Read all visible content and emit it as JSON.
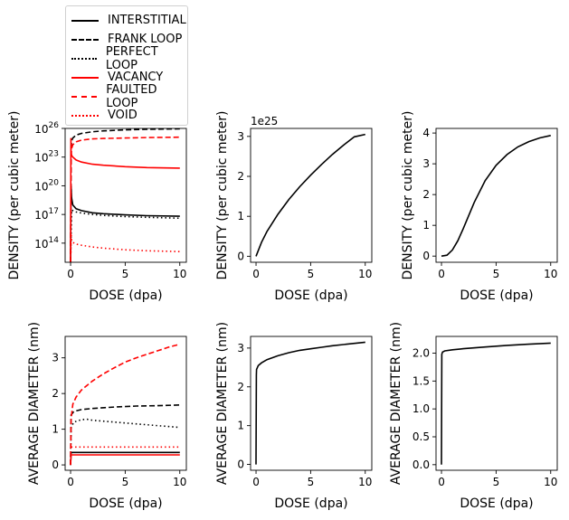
{
  "legend": [
    {
      "label": "INTERSTITIAL",
      "color": "#000000",
      "dash": "solid"
    },
    {
      "label": "FRANK LOOP",
      "color": "#000000",
      "dash": "dashed"
    },
    {
      "label": "PERFECT LOOP",
      "color": "#000000",
      "dash": "dotted"
    },
    {
      "label": "VACANCY",
      "color": "#ff0000",
      "dash": "solid"
    },
    {
      "label": "FAULTED LOOP",
      "color": "#ff0000",
      "dash": "dashed"
    },
    {
      "label": "VOID",
      "color": "#ff0000",
      "dash": "dotted"
    }
  ],
  "chart_data": [
    {
      "type": "line",
      "yscale": "log",
      "xlabel": "DOSE (dpa)",
      "ylabel": "DENSITY (per cubic meter)",
      "xlim": [
        -0.5,
        10.6
      ],
      "ylim": [
        1000000000000.0,
        1e+26
      ],
      "xticks": [
        0,
        5,
        10
      ],
      "yticks": [
        100000000000000.0,
        1e+17,
        1e+20,
        1e+23,
        1e+26
      ],
      "ytick_labels": [
        [
          "10",
          "14"
        ],
        [
          "10",
          "17"
        ],
        [
          "10",
          "20"
        ],
        [
          "10",
          "23"
        ],
        [
          "10",
          "26"
        ]
      ],
      "series": [
        {
          "name": "INTERSTITIAL",
          "color": "#000000",
          "dash": "solid",
          "x": [
            0,
            0.05,
            0.1,
            0.2,
            0.5,
            1,
            2,
            3,
            5,
            7,
            10
          ],
          "y": [
            1000000000000.0,
            1e+20,
            5e+18,
            1e+18,
            4e+17,
            2.5e+17,
            1.5e+17,
            1.2e+17,
            9e+16,
            7.5e+16,
            6.5e+16
          ]
        },
        {
          "name": "FRANK LOOP",
          "color": "#000000",
          "dash": "dashed",
          "x": [
            0,
            0.05,
            0.1,
            0.2,
            0.5,
            1,
            2,
            3,
            5,
            7,
            10
          ],
          "y": [
            1000000000000.0,
            1e+24,
            5e+24,
            1e+25,
            2e+25,
            3e+25,
            4.5e+25,
            5.5e+25,
            7e+25,
            8e+25,
            9e+25
          ]
        },
        {
          "name": "PERFECT LOOP",
          "color": "#000000",
          "dash": "dotted",
          "x": [
            0,
            0.1,
            0.2,
            0.5,
            1,
            2,
            3,
            5,
            7,
            10
          ],
          "y": [
            1000000000000.0,
            3e+17,
            2.5e+17,
            1.8e+17,
            1.4e+17,
            1e+17,
            8e+16,
            6e+16,
            5e+16,
            4e+16
          ]
        },
        {
          "name": "VACANCY",
          "color": "#ff0000",
          "dash": "solid",
          "x": [
            0,
            0.03,
            0.05,
            0.1,
            0.2,
            0.5,
            1,
            2,
            3,
            5,
            7,
            10
          ],
          "y": [
            1000000000000.0,
            1e+25,
            3e+23,
            1.5e+23,
            1e+23,
            5e+22,
            3e+22,
            1.8e+22,
            1.4e+22,
            1e+22,
            8e+21,
            7e+21
          ]
        },
        {
          "name": "FAULTED LOOP",
          "color": "#ff0000",
          "dash": "dashed",
          "x": [
            0,
            0.05,
            0.1,
            0.2,
            0.5,
            1,
            2,
            3,
            5,
            7,
            10
          ],
          "y": [
            1000000000000.0,
            1e+23,
            8e+23,
            2e+24,
            4e+24,
            6e+24,
            8e+24,
            9e+24,
            1e+25,
            1.1e+25,
            1.2e+25
          ]
        },
        {
          "name": "VOID",
          "color": "#ff0000",
          "dash": "dotted",
          "x": [
            0.03,
            0.05,
            0.1,
            0.2,
            0.5,
            1,
            2,
            3,
            5,
            7,
            10
          ],
          "y": [
            10000000000000.0,
            1000000000000000.0,
            200000000000000.0,
            120000000000000.0,
            80000000000000.0,
            60000000000000.0,
            40000000000000.0,
            30000000000000.0,
            20000000000000.0,
            16000000000000.0,
            13000000000000.0
          ]
        }
      ]
    },
    {
      "type": "line",
      "xlabel": "DOSE (dpa)",
      "ylabel": "DENSITY (per cubic meter)",
      "offset_text": "1e25",
      "xlim": [
        -0.5,
        10.6
      ],
      "ylim": [
        -0.15,
        3.2
      ],
      "xticks": [
        0,
        5,
        10
      ],
      "yticks": [
        0,
        1,
        2,
        3
      ],
      "series": [
        {
          "color": "#000000",
          "dash": "solid",
          "x": [
            0,
            0.5,
            1,
            2,
            3,
            4,
            5,
            6,
            7,
            8,
            9,
            10
          ],
          "y": [
            0,
            0.35,
            0.62,
            1.05,
            1.42,
            1.74,
            2.03,
            2.3,
            2.55,
            2.78,
            2.99,
            3.05
          ]
        }
      ]
    },
    {
      "type": "line",
      "xlabel": "DOSE (dpa)",
      "ylabel": "DENSITY (per cubic meter)",
      "xlim": [
        -0.5,
        10.6
      ],
      "ylim": [
        -0.2,
        4.15
      ],
      "xticks": [
        0,
        5,
        10
      ],
      "yticks": [
        0,
        1,
        2,
        3,
        4
      ],
      "series": [
        {
          "color": "#000000",
          "dash": "solid",
          "x": [
            0,
            0.5,
            1,
            1.5,
            2,
            3,
            4,
            5,
            6,
            7,
            8,
            9,
            10
          ],
          "y": [
            0,
            0.03,
            0.2,
            0.5,
            0.9,
            1.75,
            2.45,
            2.95,
            3.3,
            3.55,
            3.72,
            3.84,
            3.92
          ]
        }
      ]
    },
    {
      "type": "line",
      "xlabel": "DOSE (dpa)",
      "ylabel": "AVERAGE DIAMETER (nm)",
      "xlim": [
        -0.5,
        10.6
      ],
      "ylim": [
        -0.15,
        3.6
      ],
      "xticks": [
        0,
        5,
        10
      ],
      "yticks": [
        0,
        1,
        2,
        3
      ],
      "series": [
        {
          "name": "INTERSTITIAL",
          "color": "#000000",
          "dash": "solid",
          "x": [
            0,
            0.05,
            10
          ],
          "y": [
            0,
            0.35,
            0.35
          ]
        },
        {
          "name": "FRANK LOOP",
          "color": "#000000",
          "dash": "dashed",
          "x": [
            0,
            0.05,
            0.3,
            1,
            2,
            4,
            6,
            8,
            10
          ],
          "y": [
            0,
            1.4,
            1.5,
            1.55,
            1.58,
            1.62,
            1.65,
            1.66,
            1.68
          ]
        },
        {
          "name": "PERFECT LOOP",
          "color": "#000000",
          "dash": "dotted",
          "x": [
            0,
            0.05,
            0.3,
            1,
            1.5,
            2,
            4,
            6,
            8,
            10
          ],
          "y": [
            0,
            1.05,
            1.2,
            1.27,
            1.28,
            1.25,
            1.2,
            1.15,
            1.1,
            1.05
          ]
        },
        {
          "name": "VACANCY",
          "color": "#ff0000",
          "dash": "solid",
          "x": [
            0,
            0.05,
            10
          ],
          "y": [
            0,
            0.28,
            0.28
          ]
        },
        {
          "name": "FAULTED LOOP",
          "color": "#ff0000",
          "dash": "dashed",
          "x": [
            0,
            0.05,
            0.2,
            0.5,
            1,
            2,
            3,
            4,
            5,
            6,
            7,
            8,
            9,
            10
          ],
          "y": [
            0,
            1.3,
            1.7,
            1.9,
            2.1,
            2.35,
            2.55,
            2.72,
            2.88,
            3.0,
            3.1,
            3.2,
            3.3,
            3.38
          ]
        },
        {
          "name": "VOID",
          "color": "#ff0000",
          "dash": "dotted",
          "x": [
            0.05,
            0.3,
            10
          ],
          "y": [
            0.5,
            0.5,
            0.5
          ]
        }
      ]
    },
    {
      "type": "line",
      "xlabel": "DOSE (dpa)",
      "ylabel": "AVERAGE DIAMETER (nm)",
      "xlim": [
        -0.5,
        10.6
      ],
      "ylim": [
        -0.15,
        3.3
      ],
      "xticks": [
        0,
        5,
        10
      ],
      "yticks": [
        0,
        1,
        2,
        3
      ],
      "series": [
        {
          "color": "#000000",
          "dash": "solid",
          "x": [
            0,
            0.03,
            0.05,
            0.2,
            0.5,
            1,
            2,
            3,
            4,
            5,
            6,
            7,
            8,
            9,
            10
          ],
          "y": [
            0,
            2.3,
            2.45,
            2.55,
            2.62,
            2.7,
            2.8,
            2.88,
            2.94,
            2.98,
            3.02,
            3.06,
            3.09,
            3.12,
            3.15
          ]
        }
      ]
    },
    {
      "type": "line",
      "xlabel": "DOSE (dpa)",
      "ylabel": "AVERAGE DIAMETER (nm)",
      "xlim": [
        -0.5,
        10.6
      ],
      "ylim": [
        -0.1,
        2.3
      ],
      "xticks": [
        0,
        5,
        10
      ],
      "yticks": [
        0,
        0.5,
        1,
        1.5,
        2
      ],
      "ytick_labels": [
        "0.0",
        "0.5",
        "1.0",
        "1.5",
        "2.0"
      ],
      "series": [
        {
          "color": "#000000",
          "dash": "solid",
          "x": [
            0,
            0.03,
            0.1,
            0.3,
            1,
            2,
            4,
            6,
            8,
            10
          ],
          "y": [
            0,
            1.98,
            2.02,
            2.04,
            2.06,
            2.08,
            2.11,
            2.14,
            2.16,
            2.18
          ]
        }
      ]
    }
  ]
}
